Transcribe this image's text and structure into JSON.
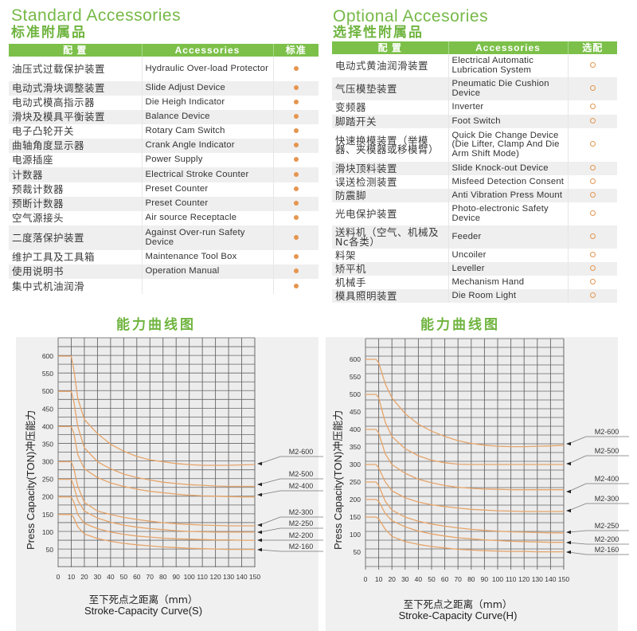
{
  "standard": {
    "title_en": "Standard Accessories",
    "title_zh": "标准附属品",
    "headers": [
      "配 置",
      "Accessories",
      "标准"
    ],
    "rows": [
      {
        "zh": "油压式过载保护装置",
        "en": "Hydraulic Over-load Protector",
        "mark": "filled"
      },
      {
        "zh": "电动式滑块调整装置",
        "en": "Slide Adjust Device",
        "mark": "filled"
      },
      {
        "zh": "电动式模高指示器",
        "en": "Die Heigh Indicator",
        "mark": "filled"
      },
      {
        "zh": "滑块及模具平衡装置",
        "en": "Balance Device",
        "mark": "filled"
      },
      {
        "zh": "电子凸轮开关",
        "en": "Rotary Cam Switch",
        "mark": "filled"
      },
      {
        "zh": "曲轴角度显示器",
        "en": "Crank Angle Indicator",
        "mark": "filled"
      },
      {
        "zh": "电源插座",
        "en": "Power Supply",
        "mark": "filled"
      },
      {
        "zh": "计数器",
        "en": "Electrical Stroke Counter",
        "mark": "filled"
      },
      {
        "zh": "预裁计数器",
        "en": "Preset Counter",
        "mark": "filled"
      },
      {
        "zh": "预断计数器",
        "en": "Preset Counter",
        "mark": "filled"
      },
      {
        "zh": "空气源接头",
        "en": "Air source Receptacle",
        "mark": "filled"
      },
      {
        "zh": "二度落保护装置",
        "en": "Against Over-run Safety Device",
        "mark": "filled"
      },
      {
        "zh": "维护工具及工具箱",
        "en": "Maintenance Tool Box",
        "mark": "filled"
      },
      {
        "zh": "使用说明书",
        "en": "Operation Manual",
        "mark": "filled"
      },
      {
        "zh": "集中式机油润滑",
        "en": "",
        "mark": "filled"
      }
    ]
  },
  "optional": {
    "title_en": "Optional Accesories",
    "title_zh": "选择性附属品",
    "headers": [
      "配 置",
      "Accessories",
      "选配"
    ],
    "rows": [
      {
        "zh": "电动式黄油润滑装置",
        "en": "Electrical Automatic Lubrication System",
        "mark": "open"
      },
      {
        "zh": "气压模垫装置",
        "en": "Pneumatic Die Cushion Device",
        "mark": "open"
      },
      {
        "zh": "变频器",
        "en": "Inverter",
        "mark": "open"
      },
      {
        "zh": "脚踏开关",
        "en": "Foot Switch",
        "mark": "open"
      },
      {
        "zh": "快速换模装置（举模器、夹模器或移模臂）",
        "en": "Quick Die Change Device (Die Lifter, Clamp And Die Arm Shift Mode)",
        "mark": "open"
      },
      {
        "zh": "滑块顶料装置",
        "en": "Slide Knock-out Device",
        "mark": "open"
      },
      {
        "zh": "误送检测装置",
        "en": "Misfeed Detection Consent",
        "mark": "open"
      },
      {
        "zh": "防震脚",
        "en": "Anti Vibration Press Mount",
        "mark": "open"
      },
      {
        "zh": "光电保护装置",
        "en": "Photo-electronic Safety Device",
        "mark": "open"
      },
      {
        "zh": "送料机（空气、机械及Nc各类）",
        "en": "Feeder",
        "mark": "open"
      },
      {
        "zh": "料架",
        "en": "Uncoiler",
        "mark": "open"
      },
      {
        "zh": "矫平机",
        "en": "Leveller",
        "mark": "open"
      },
      {
        "zh": "机械手",
        "en": "Mechanism Hand",
        "mark": "open"
      },
      {
        "zh": "模具照明装置",
        "en": "Die Room Light",
        "mark": "open"
      }
    ]
  },
  "colors": {
    "accent_green": "#76b947",
    "header_green": "#7cc04a",
    "curve_orange": "#e5a46a",
    "panel_bg": "#f0f0f0"
  },
  "chart_data": [
    {
      "type": "line",
      "title": "能力曲线图",
      "subtitle": "Stroke-Capacity Curve(S)",
      "xlabel": "至下死点之距离（mm）",
      "ylabel": "Press Capacity(TON)冲压能力",
      "x_ticks": [
        0,
        10,
        20,
        30,
        40,
        50,
        60,
        70,
        80,
        90,
        100,
        110,
        120,
        130,
        140,
        150
      ],
      "y_ticks": [
        50,
        100,
        150,
        200,
        250,
        300,
        350,
        400,
        450,
        500,
        550,
        600
      ],
      "xlim": [
        0,
        150
      ],
      "ylim": [
        25,
        650
      ],
      "grid": true,
      "legend_position": "right (arrow labels)",
      "x": [
        0,
        10,
        12,
        15,
        20,
        30,
        40,
        50,
        60,
        70,
        80,
        90,
        100,
        110,
        120,
        130,
        140,
        150
      ],
      "series": [
        {
          "name": "M2-600",
          "values": [
            600,
            600,
            560,
            480,
            420,
            380,
            350,
            330,
            315,
            305,
            300,
            295,
            292,
            290,
            290,
            290,
            291,
            292
          ]
        },
        {
          "name": "M2-500",
          "values": [
            500,
            500,
            470,
            400,
            340,
            300,
            280,
            265,
            255,
            248,
            242,
            238,
            235,
            233,
            231,
            230,
            230,
            230
          ]
        },
        {
          "name": "M2-400",
          "values": [
            400,
            400,
            380,
            320,
            280,
            255,
            240,
            230,
            222,
            216,
            212,
            208,
            205,
            203,
            202,
            201,
            200,
            200
          ]
        },
        {
          "name": "M2-300",
          "values": [
            300,
            300,
            280,
            230,
            185,
            160,
            150,
            142,
            136,
            131,
            127,
            124,
            122,
            120,
            119,
            118,
            118,
            118
          ]
        },
        {
          "name": "M2-250",
          "values": [
            250,
            250,
            230,
            190,
            160,
            140,
            128,
            120,
            114,
            110,
            107,
            104,
            102,
            101,
            100,
            100,
            100,
            100
          ]
        },
        {
          "name": "M2-200",
          "values": [
            200,
            200,
            185,
            150,
            125,
            110,
            100,
            94,
            89,
            86,
            83,
            81,
            80,
            79,
            78,
            78,
            77,
            77
          ]
        },
        {
          "name": "M2-160",
          "values": [
            150,
            150,
            140,
            115,
            95,
            82,
            74,
            68,
            64,
            61,
            58,
            56,
            54,
            53,
            52,
            51,
            51,
            51
          ]
        }
      ]
    },
    {
      "type": "line",
      "title": "能力曲线图",
      "subtitle": "Stroke-Capacity Curve(H)",
      "xlabel": "至下死点之距离（mm）",
      "ylabel": "Press Capacity(TON)冲压能力",
      "x_ticks": [
        0,
        10,
        20,
        30,
        40,
        50,
        60,
        70,
        80,
        90,
        100,
        110,
        120,
        130,
        140,
        150
      ],
      "y_ticks": [
        50,
        100,
        150,
        200,
        250,
        300,
        350,
        400,
        450,
        500,
        550,
        600
      ],
      "xlim": [
        0,
        150
      ],
      "ylim": [
        25,
        650
      ],
      "grid": true,
      "legend_position": "right (arrow labels)",
      "x": [
        0,
        8,
        10,
        15,
        20,
        30,
        40,
        50,
        60,
        70,
        80,
        90,
        100,
        110,
        120,
        130,
        140,
        150
      ],
      "series": [
        {
          "name": "M2-600",
          "values": [
            600,
            600,
            590,
            530,
            490,
            445,
            415,
            395,
            380,
            368,
            360,
            355,
            352,
            351,
            351,
            352,
            353,
            355
          ]
        },
        {
          "name": "M2-500",
          "values": [
            500,
            500,
            490,
            420,
            380,
            345,
            325,
            312,
            305,
            301,
            300,
            300,
            300,
            300,
            300,
            300,
            300,
            300
          ]
        },
        {
          "name": "M2-400",
          "values": [
            400,
            400,
            390,
            330,
            300,
            275,
            258,
            248,
            240,
            235,
            232,
            230,
            229,
            228,
            228,
            228,
            228,
            228
          ]
        },
        {
          "name": "M2-300",
          "values": [
            300,
            300,
            290,
            250,
            225,
            205,
            193,
            185,
            180,
            176,
            172,
            170,
            168,
            167,
            166,
            166,
            166,
            166
          ]
        },
        {
          "name": "M2-250",
          "values": [
            250,
            250,
            240,
            195,
            170,
            150,
            138,
            130,
            124,
            119,
            115,
            112,
            110,
            108,
            107,
            106,
            105,
            105
          ]
        },
        {
          "name": "M2-200",
          "values": [
            200,
            200,
            195,
            160,
            140,
            122,
            110,
            102,
            96,
            91,
            88,
            85,
            83,
            81,
            80,
            79,
            78,
            78
          ]
        },
        {
          "name": "M2-160",
          "values": [
            150,
            150,
            145,
            115,
            95,
            80,
            72,
            66,
            62,
            58,
            56,
            54,
            53,
            52,
            52,
            51,
            51,
            51
          ]
        }
      ]
    }
  ]
}
